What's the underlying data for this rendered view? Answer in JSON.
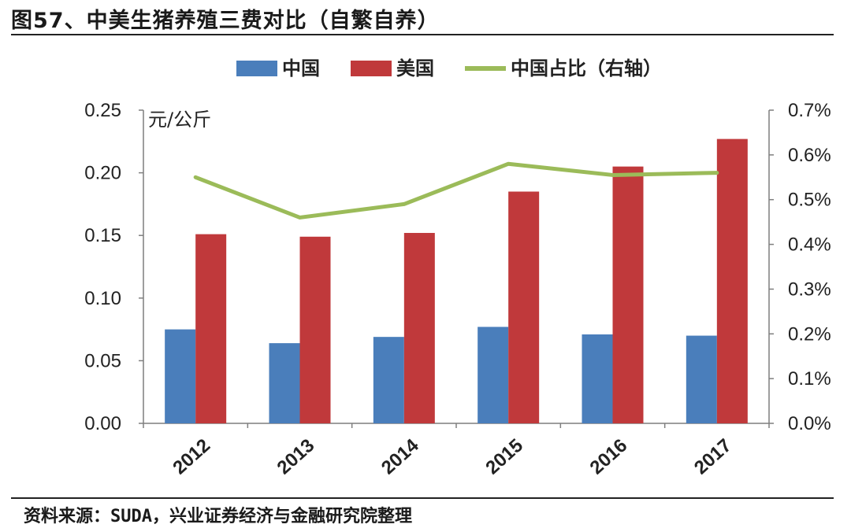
{
  "header": {
    "title": "图57、中美生猪养殖三费对比（自繁自养）"
  },
  "footer": {
    "source": "资料来源：SUDA，兴业证券经济与金融研究院整理"
  },
  "colors": {
    "china": "#4a7ebb",
    "usa": "#c0393b",
    "share": "#9bbb59",
    "axis": "#7f7f7f"
  },
  "chart_data": {
    "type": "bar",
    "categories": [
      "2012",
      "2013",
      "2014",
      "2015",
      "2016",
      "2017"
    ],
    "series": [
      {
        "name": "中国",
        "type": "bar",
        "axis": "left",
        "values": [
          0.075,
          0.064,
          0.069,
          0.077,
          0.071,
          0.07
        ]
      },
      {
        "name": "美国",
        "type": "bar",
        "axis": "left",
        "values": [
          0.151,
          0.149,
          0.152,
          0.185,
          0.205,
          0.227
        ]
      },
      {
        "name": "中国占比（右轴）",
        "type": "line",
        "axis": "right",
        "values": [
          0.55,
          0.46,
          0.49,
          0.58,
          0.555,
          0.56
        ]
      }
    ],
    "ylabel": "元/公斤",
    "ylim": [
      0,
      0.25
    ],
    "yticks": [
      "0.00",
      "0.05",
      "0.10",
      "0.15",
      "0.20",
      "0.25"
    ],
    "y2lim": [
      0,
      0.7
    ],
    "y2ticks": [
      "0.0%",
      "0.1%",
      "0.2%",
      "0.3%",
      "0.4%",
      "0.5%",
      "0.6%",
      "0.7%"
    ],
    "legend": "top",
    "grid": false
  }
}
